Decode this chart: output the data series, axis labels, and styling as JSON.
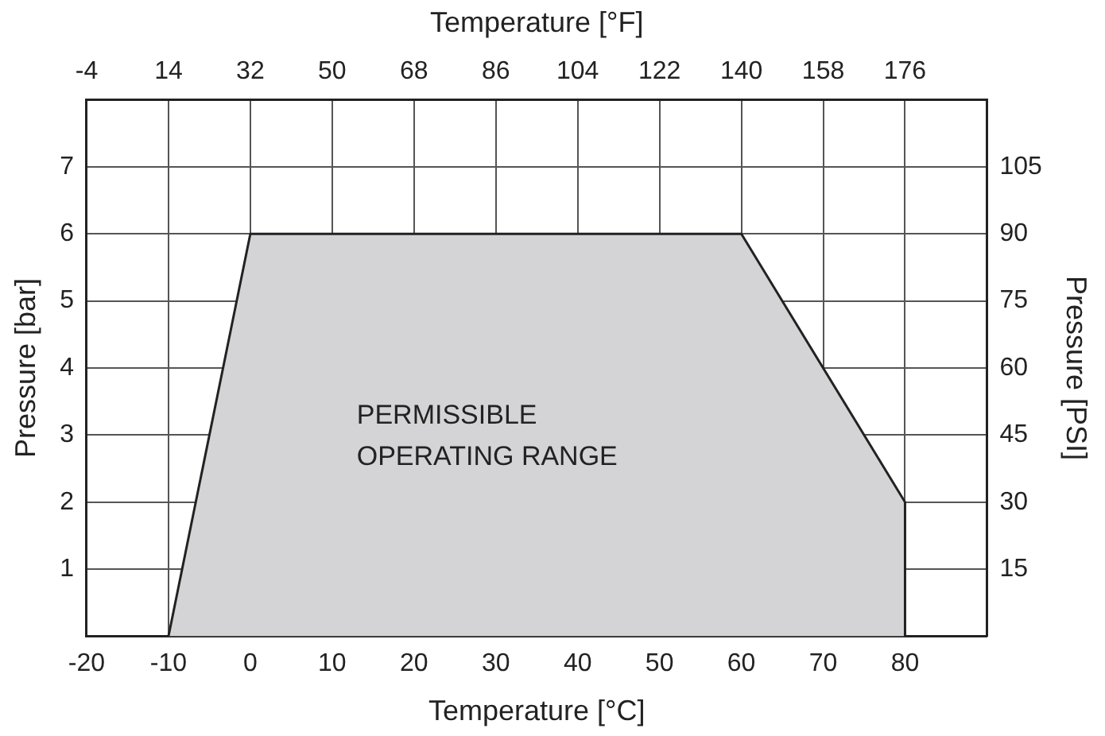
{
  "chart_data": {
    "type": "area",
    "xlabel": "Temperature [°C]",
    "x2label": "Temperature [°F]",
    "ylabel": "Pressure [bar]",
    "y2label": "Pressure [PSI]",
    "x": [
      -10,
      0,
      60,
      80,
      80
    ],
    "series": [
      {
        "color": "#d4d4d6",
        "values": [
          0,
          6,
          6,
          2,
          0
        ]
      }
    ],
    "xlim": [
      -20,
      90
    ],
    "xticks": [
      -20,
      -10,
      0,
      10,
      20,
      30,
      40,
      50,
      60,
      70,
      80
    ],
    "x2lim": [
      -4,
      194
    ],
    "x2ticks": [
      -4,
      14,
      32,
      50,
      68,
      86,
      104,
      122,
      140,
      158,
      176
    ],
    "ylim": [
      0,
      8
    ],
    "yticks": [
      1,
      2,
      3,
      4,
      5,
      6,
      7
    ],
    "y2lim": [
      0,
      120
    ],
    "y2ticks": [
      15,
      30,
      45,
      60,
      75,
      90,
      105
    ],
    "annotations": [
      "PERMISSIBLE\nOPERATING RANGE"
    ],
    "grid": true,
    "legend": false,
    "marker": "none",
    "line_style": "solid"
  }
}
